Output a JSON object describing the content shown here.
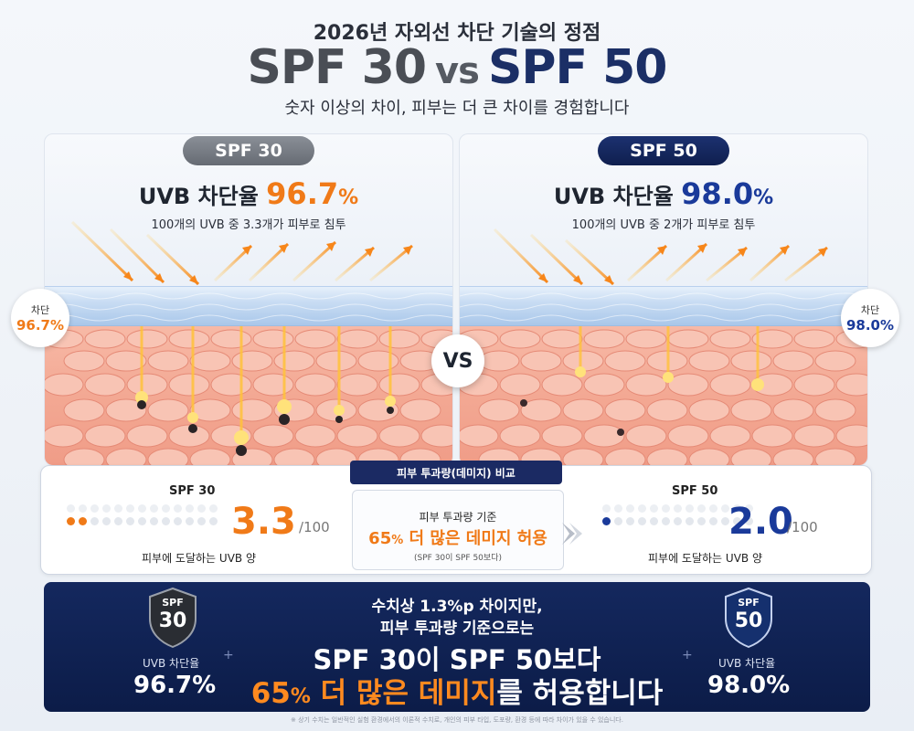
{
  "header": {
    "supertitle": "2026년 자외선 차단 기술의 정점",
    "title_left": "SPF 30",
    "title_vs": "vs",
    "title_right": "SPF 50",
    "subtitle": "숫자 이상의 차이, 피부는 더 큰 차이를 경험합니다"
  },
  "left_panel": {
    "pill": "SPF 30",
    "uvb_label": "UVB 차단율",
    "uvb_value": "96.7",
    "uvb_unit": "%",
    "description": "100개의 UVB 중 3.3개가 피부로 침투",
    "side_badge_label": "차단",
    "side_badge_value": "96.7%"
  },
  "right_panel": {
    "pill": "SPF 50",
    "uvb_label": "UVB 차단율",
    "uvb_value": "98.0",
    "uvb_unit": "%",
    "description": "100개의 UVB 중 2개가 피부로 침투",
    "side_badge_label": "차단",
    "side_badge_value": "98.0%"
  },
  "vs_label": "VS",
  "comparison": {
    "title": "피부 투과량(데미지) 비교",
    "left": {
      "label": "SPF 30",
      "value": "3.3",
      "denominator": "/100",
      "caption": "피부에 도달하는 UVB 양"
    },
    "center": {
      "heading": "피부 투과량 기준",
      "highlight_pct": "65",
      "highlight_unit": "%",
      "highlight_text": "더 많은 데미지 허용",
      "note": "(SPF 30이 SPF 50보다)"
    },
    "right": {
      "label": "SPF 50",
      "value": "2.0",
      "denominator": "/100",
      "caption": "피부에 도달하는 UVB 양"
    }
  },
  "banner": {
    "left_shield_top": "SPF",
    "left_shield_num": "30",
    "left_label": "UVB 차단율",
    "left_value": "96.7%",
    "right_shield_top": "SPF",
    "right_shield_num": "50",
    "right_label": "UVB 차단율",
    "right_value": "98.0%",
    "line1": "수치상 1.3%p 차이지만,",
    "line2": "피부 투과량 기준으로는",
    "line3": "SPF 30이 SPF 50보다",
    "line4_pct": "65",
    "line4_unit": "%",
    "line4_highlight": " 더 많은 데미지",
    "line4_rest": "를 허용합니다"
  },
  "footnote": "※ 상기 수치는 일반적인 실험 환경에서의 이론적 수치로, 개인의 피부 타입, 도포량, 환경 등에 따라 차이가 있을 수 있습니다.",
  "colors": {
    "orange": "#f07a18",
    "navy": "#1b2a63",
    "accent_blue": "#1a3a9a"
  }
}
